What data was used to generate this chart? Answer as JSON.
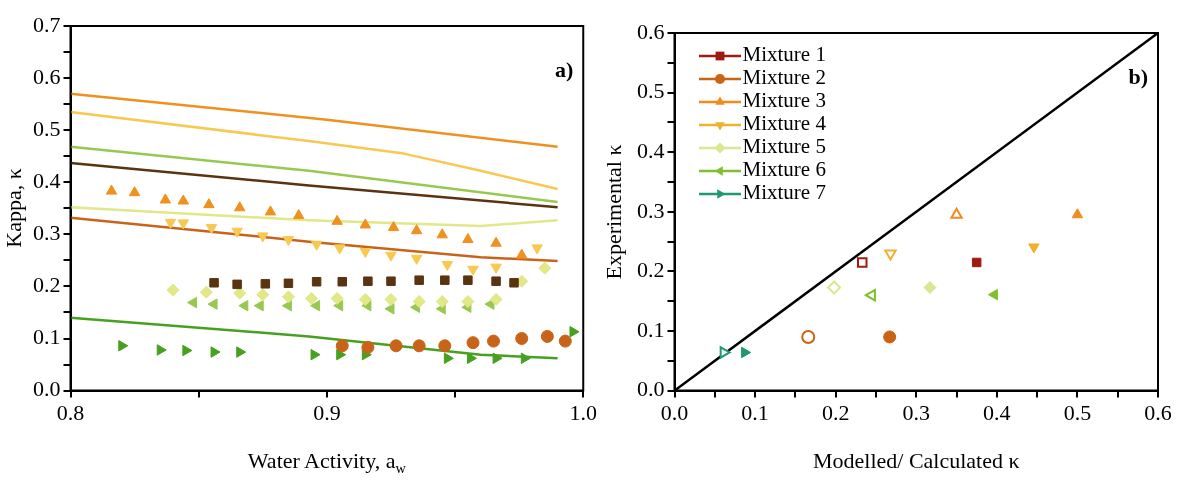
{
  "chart_data": [
    {
      "type": "scatter",
      "xlabel": "Water Activity, a$_{w}$",
      "ylabel": "Kappa, κ",
      "annotations": [
        "a)"
      ],
      "xlim": [
        0.8,
        1.0
      ],
      "xticks": [
        0.8,
        {
          "value": 0.85,
          "label": null
        },
        0.9,
        {
          "value": 0.95,
          "label": null
        },
        {
          "value": 1.0,
          "label": "1.0"
        }
      ],
      "ylim": [
        0,
        0.7
      ],
      "yticks": [
        {
          "value": 0,
          "label": "0.0"
        },
        {
          "value": 0.05,
          "label": null
        },
        0.1,
        {
          "value": 0.15,
          "label": null
        },
        0.2,
        {
          "value": 0.25,
          "label": null
        },
        0.3,
        {
          "value": 0.35,
          "label": null
        },
        0.4,
        {
          "value": 0.45,
          "label": null
        },
        0.5,
        {
          "value": 0.55,
          "label": null
        },
        0.6,
        {
          "value": 0.65,
          "label": null
        },
        0.7
      ],
      "grid": false,
      "legend": false,
      "series": [
        {
          "type": "line",
          "color": "#f0901e",
          "x": [
            0.8,
            0.9,
            0.99
          ],
          "values": [
            0.57,
            0.52,
            0.468
          ]
        },
        {
          "type": "line",
          "color": "#f8c850",
          "x": [
            0.8,
            0.893,
            0.93,
            0.96,
            0.99
          ],
          "values": [
            0.535,
            0.479,
            0.455,
            0.422,
            0.387
          ]
        },
        {
          "type": "line",
          "color": "#98c850",
          "x": [
            0.8,
            0.893,
            0.99
          ],
          "values": [
            0.468,
            0.422,
            0.362
          ]
        },
        {
          "type": "line",
          "color": "#5a3410",
          "x": [
            0.8,
            0.893,
            0.99
          ],
          "values": [
            0.437,
            0.394,
            0.352
          ]
        },
        {
          "type": "line",
          "color": "#e0e888",
          "x": [
            0.8,
            0.893,
            0.96,
            0.99
          ],
          "values": [
            0.352,
            0.327,
            0.316,
            0.327
          ]
        },
        {
          "type": "line",
          "color": "#c8641a",
          "x": [
            0.8,
            0.893,
            0.96,
            0.99
          ],
          "values": [
            0.332,
            0.286,
            0.256,
            0.249
          ]
        },
        {
          "type": "line",
          "color": "#48a020",
          "x": [
            0.8,
            0.893,
            0.96,
            0.99
          ],
          "values": [
            0.14,
            0.104,
            0.069,
            0.062
          ]
        },
        {
          "marker": "triangle",
          "color": "#f0901e",
          "x": [
            0.816,
            0.825,
            0.837,
            0.844,
            0.854,
            0.866,
            0.878,
            0.889,
            0.904,
            0.915,
            0.926,
            0.935,
            0.945,
            0.955,
            0.966,
            0.976
          ],
          "values": [
            0.383,
            0.38,
            0.366,
            0.364,
            0.357,
            0.351,
            0.343,
            0.336,
            0.325,
            0.318,
            0.313,
            0.307,
            0.299,
            0.29,
            0.283,
            0.26
          ]
        },
        {
          "marker": "triangle-down",
          "color": "#f8c850",
          "x": [
            0.839,
            0.844,
            0.855,
            0.865,
            0.875,
            0.885,
            0.896,
            0.905,
            0.915,
            0.925,
            0.935,
            0.947,
            0.957,
            0.966,
            0.982
          ],
          "values": [
            0.323,
            0.322,
            0.313,
            0.306,
            0.297,
            0.29,
            0.281,
            0.274,
            0.267,
            0.26,
            0.254,
            0.242,
            0.233,
            0.237,
            0.274
          ]
        },
        {
          "marker": "square",
          "color": "#5a3410",
          "x": [
            0.856,
            0.865,
            0.876,
            0.885,
            0.896,
            0.906,
            0.916,
            0.925,
            0.936,
            0.946,
            0.955,
            0.966,
            0.973
          ],
          "values": [
            0.207,
            0.204,
            0.205,
            0.206,
            0.209,
            0.209,
            0.21,
            0.21,
            0.212,
            0.212,
            0.212,
            0.21,
            0.207
          ]
        },
        {
          "marker": "diamond",
          "color": "#e0e888",
          "x": [
            0.84,
            0.853,
            0.866,
            0.875,
            0.885,
            0.894,
            0.904,
            0.915,
            0.925,
            0.936,
            0.945,
            0.955,
            0.966,
            0.976,
            0.985
          ],
          "values": [
            0.193,
            0.189,
            0.187,
            0.184,
            0.18,
            0.177,
            0.177,
            0.175,
            0.175,
            0.171,
            0.171,
            0.171,
            0.175,
            0.21,
            0.235
          ]
        },
        {
          "marker": "triangle-left",
          "color": "#98c850",
          "x": [
            0.848,
            0.856,
            0.868,
            0.874,
            0.885,
            0.896,
            0.905,
            0.916,
            0.925,
            0.935,
            0.945,
            0.955,
            0.964
          ],
          "values": [
            0.169,
            0.166,
            0.163,
            0.163,
            0.163,
            0.163,
            0.163,
            0.163,
            0.157,
            0.16,
            0.157,
            0.16,
            0.166
          ]
        },
        {
          "marker": "circle",
          "color": "#c8641a",
          "x": [
            0.906,
            0.916,
            0.927,
            0.936,
            0.946,
            0.957,
            0.965,
            0.976,
            0.986,
            0.993
          ],
          "values": [
            0.086,
            0.083,
            0.086,
            0.086,
            0.086,
            0.092,
            0.095,
            0.1,
            0.104,
            0.095
          ]
        },
        {
          "marker": "triangle-right",
          "color": "#48a020",
          "x": [
            0.82,
            0.835,
            0.845,
            0.856,
            0.866,
            0.895,
            0.905,
            0.915,
            0.947,
            0.956,
            0.966,
            0.977,
            0.988,
            0.996
          ],
          "values": [
            0.086,
            0.078,
            0.077,
            0.074,
            0.074,
            0.069,
            0.069,
            0.069,
            0.062,
            0.062,
            0.062,
            0.062,
            null,
            0.113
          ]
        }
      ]
    },
    {
      "type": "scatter",
      "xlabel": "Modelled/ Calculated κ",
      "ylabel": "Experimental  κ",
      "annotations": [
        "b)"
      ],
      "xlim": [
        0,
        0.6
      ],
      "xticks": [
        {
          "value": 0,
          "label": "0.0"
        },
        {
          "value": 0.05,
          "label": null
        },
        0.1,
        {
          "value": 0.15,
          "label": null
        },
        0.2,
        {
          "value": 0.25,
          "label": null
        },
        0.3,
        {
          "value": 0.35,
          "label": null
        },
        0.4,
        {
          "value": 0.45,
          "label": null
        },
        0.5,
        {
          "value": 0.55,
          "label": null
        },
        0.6
      ],
      "ylim": [
        0,
        0.6
      ],
      "yticks": [
        {
          "value": 0,
          "label": "0.0"
        },
        {
          "value": 0.05,
          "label": null
        },
        0.1,
        {
          "value": 0.15,
          "label": null
        },
        0.2,
        {
          "value": 0.25,
          "label": null
        },
        0.3,
        {
          "value": 0.35,
          "label": null
        },
        0.4,
        {
          "value": 0.45,
          "label": null
        },
        0.5,
        {
          "value": 0.55,
          "label": null
        },
        0.6
      ],
      "grid": false,
      "legend": "top left",
      "series": [
        {
          "type": "line",
          "color": "#000000",
          "x": [
            0,
            0.6
          ],
          "values": [
            0,
            0.6
          ]
        },
        {
          "name": "Mixture 1",
          "marker": "square",
          "color": "#9c1c10",
          "x": [
            0.375
          ],
          "values": [
            0.215
          ]
        },
        {
          "name": "Mixture 2",
          "marker": "circle",
          "color": "#c86414",
          "x": [
            0.267
          ],
          "values": [
            0.09
          ]
        },
        {
          "name": "Mixture 3",
          "marker": "triangle",
          "color": "#f08c1e",
          "x": [
            0.5
          ],
          "values": [
            0.295
          ]
        },
        {
          "name": "Mixture 4",
          "marker": "triangle-down",
          "color": "#f0b030",
          "x": [
            0.446
          ],
          "values": [
            0.241
          ]
        },
        {
          "name": "Mixture 5",
          "marker": "diamond",
          "color": "#d8e890",
          "x": [
            0.317
          ],
          "values": [
            0.173
          ]
        },
        {
          "name": "Mixture 6",
          "marker": "triangle-left",
          "color": "#80c030",
          "x": [
            0.397
          ],
          "values": [
            0.161
          ]
        },
        {
          "name": "Mixture 7",
          "marker": "triangle-right",
          "color": "#209870",
          "x": [
            0.087
          ],
          "values": [
            0.064
          ]
        },
        {
          "marker": "square",
          "color": "#9c1c10",
          "x": [
            0.233
          ],
          "values": [
            0.215
          ]
        },
        {
          "marker": "circle",
          "color": "#c86414",
          "x": [
            0.166
          ],
          "values": [
            0.09
          ]
        },
        {
          "marker": "triangle",
          "color": "#f08c1e",
          "x": [
            0.35
          ],
          "values": [
            0.295
          ]
        },
        {
          "marker": "triangle-down",
          "color": "#f0b030",
          "x": [
            0.268
          ],
          "values": [
            0.23
          ]
        },
        {
          "marker": "diamond",
          "color": "#d8e890",
          "x": [
            0.198
          ],
          "values": [
            0.173
          ]
        },
        {
          "marker": "triangle-left",
          "color": "#80c030",
          "x": [
            0.245
          ],
          "values": [
            0.16
          ]
        },
        {
          "marker": "triangle-right",
          "color": "#209870",
          "x": [
            0.061
          ],
          "values": [
            0.064
          ]
        }
      ]
    }
  ]
}
